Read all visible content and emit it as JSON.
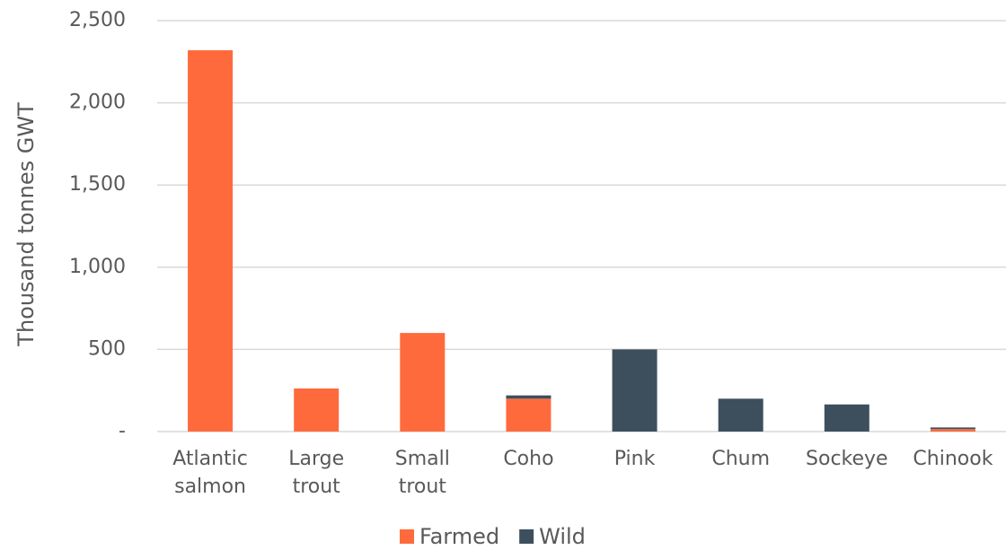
{
  "chart_data": {
    "type": "stacked_bar",
    "y_axis_label": "Thousand tonnes GWT",
    "categories": [
      "Atlantic salmon",
      "Large trout",
      "Small trout",
      "Coho",
      "Pink",
      "Chum",
      "Sockeye",
      "Chinook"
    ],
    "series": [
      {
        "name": "Farmed",
        "color": "#ff6a3d",
        "values": [
          2320,
          262,
          600,
          200,
          0,
          0,
          0,
          15
        ]
      },
      {
        "name": "Wild",
        "color": "#3d4f5c",
        "values": [
          0,
          0,
          0,
          20,
          500,
          200,
          165,
          10
        ]
      }
    ],
    "ylim": [
      0,
      2500
    ],
    "yticks": [
      {
        "value": 0,
        "label": "-"
      },
      500,
      {
        "value": 1000,
        "label": "1,000"
      },
      {
        "value": 1500,
        "label": "1,500"
      },
      {
        "value": 2000,
        "label": "2,000"
      },
      {
        "value": 2500,
        "label": "2,500"
      }
    ],
    "grid": true,
    "legend": "bottom"
  }
}
